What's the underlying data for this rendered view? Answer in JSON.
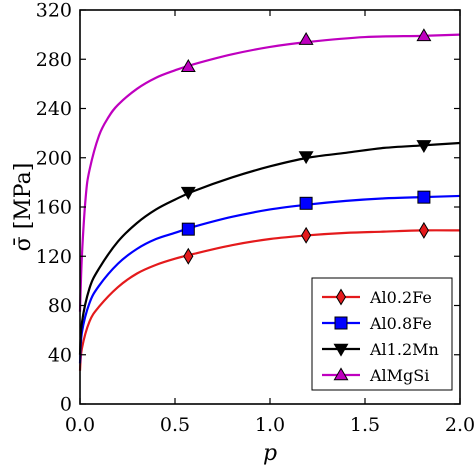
{
  "chart_data": {
    "type": "line",
    "xlabel": "p",
    "ylabel": "σ̄ [MPa]",
    "xlim": [
      0.0,
      2.0
    ],
    "ylim": [
      0,
      320
    ],
    "xticks": [
      "0.0",
      "0.5",
      "1.0",
      "1.5",
      "2.0"
    ],
    "yticks": [
      "0",
      "40",
      "80",
      "120",
      "160",
      "200",
      "240",
      "280",
      "320"
    ],
    "grid": false,
    "legend_position": "bottom-right",
    "series": [
      {
        "name": "Al0.2Fe",
        "color": "#e41a1c",
        "marker": "diamond",
        "points": [
          [
            0.57,
            120
          ],
          [
            1.19,
            137
          ],
          [
            1.81,
            141
          ]
        ],
        "curve": [
          [
            0.0,
            27
          ],
          [
            0.01,
            45
          ],
          [
            0.05,
            67
          ],
          [
            0.1,
            79
          ],
          [
            0.2,
            95
          ],
          [
            0.3,
            106
          ],
          [
            0.4,
            113
          ],
          [
            0.5,
            118
          ],
          [
            0.6,
            122
          ],
          [
            0.8,
            129
          ],
          [
            1.0,
            134
          ],
          [
            1.2,
            137
          ],
          [
            1.4,
            139
          ],
          [
            1.6,
            140
          ],
          [
            1.8,
            141
          ],
          [
            2.0,
            141
          ]
        ]
      },
      {
        "name": "Al0.8Fe",
        "color": "#0000ff",
        "marker": "square",
        "points": [
          [
            0.57,
            142
          ],
          [
            1.19,
            163
          ],
          [
            1.81,
            168
          ]
        ],
        "curve": [
          [
            0.0,
            33
          ],
          [
            0.01,
            58
          ],
          [
            0.05,
            82
          ],
          [
            0.1,
            96
          ],
          [
            0.2,
            114
          ],
          [
            0.3,
            126
          ],
          [
            0.4,
            134
          ],
          [
            0.5,
            139
          ],
          [
            0.6,
            144
          ],
          [
            0.8,
            152
          ],
          [
            1.0,
            158
          ],
          [
            1.2,
            162
          ],
          [
            1.4,
            165
          ],
          [
            1.6,
            167
          ],
          [
            1.8,
            168
          ],
          [
            2.0,
            169
          ]
        ]
      },
      {
        "name": "Al1.2Mn",
        "color": "#000000",
        "marker": "triangle-down",
        "points": [
          [
            0.57,
            172
          ],
          [
            1.19,
            201
          ],
          [
            1.81,
            210
          ]
        ],
        "curve": [
          [
            0.0,
            40
          ],
          [
            0.01,
            66
          ],
          [
            0.05,
            94
          ],
          [
            0.1,
            110
          ],
          [
            0.2,
            132
          ],
          [
            0.3,
            147
          ],
          [
            0.4,
            158
          ],
          [
            0.5,
            166
          ],
          [
            0.6,
            173
          ],
          [
            0.8,
            184
          ],
          [
            1.0,
            193
          ],
          [
            1.2,
            200
          ],
          [
            1.4,
            204
          ],
          [
            1.6,
            208
          ],
          [
            1.8,
            210
          ],
          [
            2.0,
            212
          ]
        ]
      },
      {
        "name": "AlMgSi",
        "color": "#bf00bf",
        "marker": "triangle-up",
        "points": [
          [
            0.57,
            274
          ],
          [
            1.19,
            296
          ],
          [
            1.81,
            299
          ]
        ],
        "curve": [
          [
            0.0,
            75
          ],
          [
            0.01,
            120
          ],
          [
            0.03,
            168
          ],
          [
            0.05,
            190
          ],
          [
            0.1,
            218
          ],
          [
            0.15,
            233
          ],
          [
            0.2,
            243
          ],
          [
            0.3,
            256
          ],
          [
            0.4,
            265
          ],
          [
            0.5,
            271
          ],
          [
            0.6,
            276
          ],
          [
            0.8,
            284
          ],
          [
            1.0,
            290
          ],
          [
            1.2,
            294
          ],
          [
            1.5,
            298
          ],
          [
            1.8,
            299
          ],
          [
            2.0,
            300
          ]
        ]
      }
    ]
  }
}
